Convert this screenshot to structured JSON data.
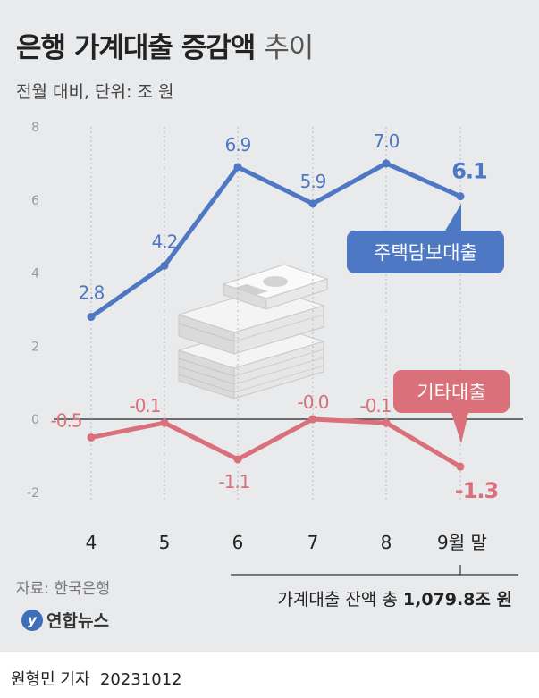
{
  "title_main": "은행 가계대출 증감액",
  "title_light": "추이",
  "subtitle": "전월 대비, 단위: 조 원",
  "source": "자료: 한국은행",
  "logo_text": "연합뉴스",
  "balance_prefix": "가계대출 잔액 총",
  "balance_value": "1,079.8조 원",
  "credit_name": "원형민 기자",
  "credit_date": "20231012",
  "colors": {
    "mortgage": "#4f78c4",
    "other": "#d9707a",
    "panel": "#e9eaec"
  },
  "chart_data": {
    "type": "line",
    "categories": [
      "4",
      "5",
      "6",
      "7",
      "8",
      "9월 말"
    ],
    "y_ticks": [
      "8",
      "6",
      "4",
      "2",
      "0",
      "-2"
    ],
    "ylim": [
      -2,
      8
    ],
    "grid": false,
    "series": [
      {
        "name": "주택담보대출",
        "values": [
          2.8,
          4.2,
          6.9,
          5.9,
          7.0,
          6.1
        ],
        "labels": [
          "2.8",
          "4.2",
          "6.9",
          "5.9",
          "7.0",
          "6.1"
        ]
      },
      {
        "name": "기타대출",
        "values": [
          -0.5,
          -0.1,
          -1.1,
          -0.0,
          -0.1,
          -1.3
        ],
        "labels": [
          "-0.5",
          "-0.1",
          "-1.1",
          "-0.0",
          "-0.1",
          "-1.3"
        ]
      }
    ]
  }
}
